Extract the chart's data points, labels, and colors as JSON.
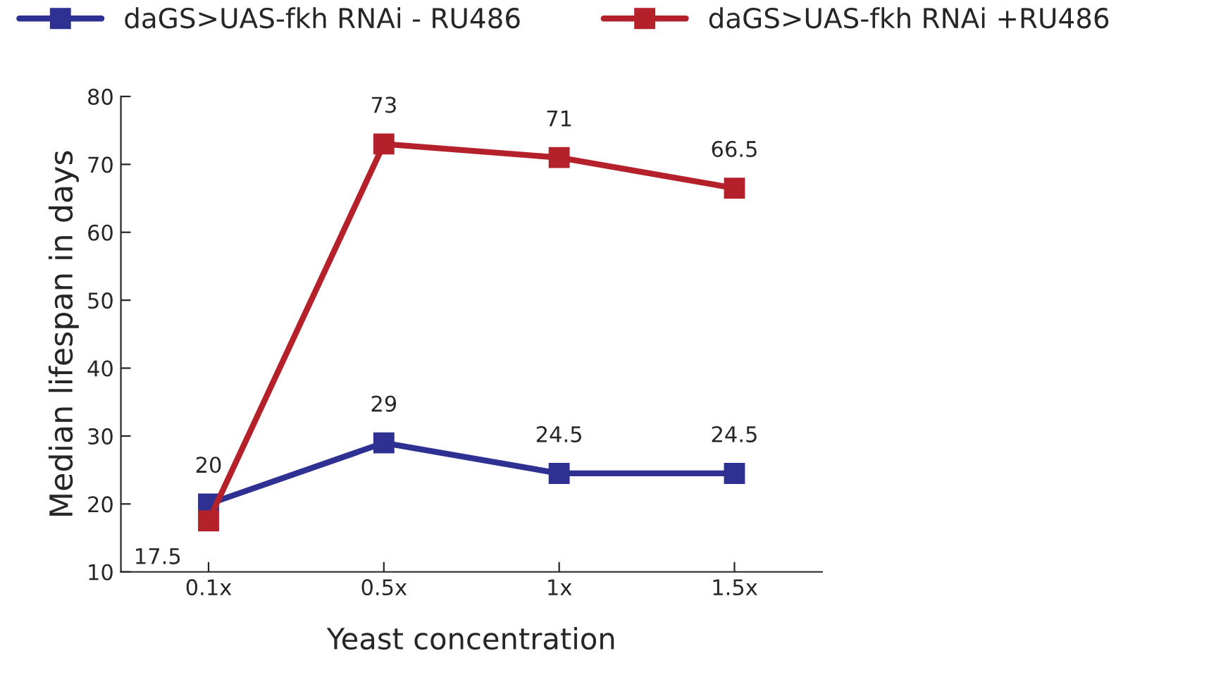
{
  "chart_data": {
    "type": "line",
    "xlabel": "Yeast concentration",
    "ylabel": "Median lifespan in days",
    "categories": [
      "0.1x",
      "0.5x",
      "1x",
      "1.5x"
    ],
    "series": [
      {
        "name": "daGS>UAS-fkh RNAi - RU486",
        "color": "#2e3192",
        "values": [
          20,
          29,
          24.5,
          24.5
        ]
      },
      {
        "name": "daGS>UAS-fkh RNAi +RU486",
        "color": "#b5212a",
        "values": [
          17.5,
          73,
          71,
          66.5
        ]
      }
    ],
    "ylim": [
      10,
      80
    ],
    "yticks": [
      10,
      20,
      30,
      40,
      50,
      60,
      70,
      80
    ],
    "grid": false,
    "legend": "top",
    "marker": "square",
    "line_style": "solid",
    "data_labels": true
  }
}
